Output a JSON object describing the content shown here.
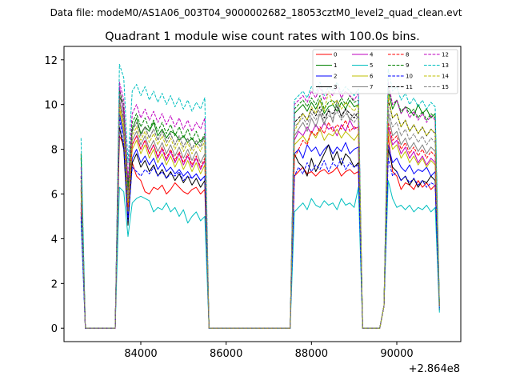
{
  "chart_data": {
    "type": "line",
    "suptitle": "Data file: modeM0/AS1A06_003T04_9000002682_18053cztM0_level2_quad_clean.evt",
    "title": "Quadrant 1 module wise count rates with 100.0s bins.",
    "xlabel": "",
    "ylabel": "",
    "x_offset_label": "+2.864e8",
    "xlim": [
      82200,
      91500
    ],
    "ylim": [
      -0.6,
      12.6
    ],
    "x_ticks": [
      84000,
      86000,
      88000,
      90000
    ],
    "x_tick_labels": [
      "84000",
      "86000",
      "88000",
      "90000"
    ],
    "y_ticks": [
      0,
      2,
      4,
      6,
      8,
      10,
      12
    ],
    "y_tick_labels": [
      "0",
      "2",
      "4",
      "6",
      "8",
      "10",
      "12"
    ],
    "legend_position": "top-right",
    "segments": [
      {
        "x0": 83500,
        "dx": 100,
        "n": 21
      },
      {
        "x0": 87600,
        "dx": 100,
        "n": 16
      },
      {
        "x0": 89800,
        "dx": 100,
        "n": 12
      }
    ],
    "series": [
      {
        "name": "0",
        "color": "#ff0000",
        "dash": "solid",
        "lead": 6.2,
        "peak": 8.6,
        "tail": 1.0,
        "segments": [
          [
            8.6,
            8.2,
            6.2,
            7.4,
            6.8,
            6.6,
            6.1,
            6.0,
            6.3,
            6.2,
            6.4,
            6.0,
            6.2,
            6.5,
            6.3,
            6.1,
            6.0,
            6.2,
            6.3,
            6.0,
            6.2
          ],
          [
            6.8,
            7.0,
            7.2,
            6.9,
            7.0,
            6.8,
            7.0,
            7.1,
            6.9,
            7.0,
            7.2,
            6.8,
            7.0,
            7.1,
            6.9,
            7.0
          ],
          [
            8.6,
            7.0,
            6.8,
            6.2,
            6.5,
            6.4,
            6.2,
            6.6,
            6.3,
            6.5,
            6.2,
            6.4
          ]
        ]
      },
      {
        "name": "1",
        "color": "#008000",
        "dash": "solid",
        "lead": 7.8,
        "peak": 10.4,
        "tail": 1.0,
        "segments": [
          [
            10.4,
            9.8,
            6.4,
            8.9,
            9.4,
            8.7,
            9.0,
            8.8,
            9.2,
            8.6,
            8.9,
            8.5,
            8.8,
            8.7,
            8.4,
            8.6,
            8.3,
            8.5,
            8.2,
            8.4,
            8.5
          ],
          [
            9.6,
            9.8,
            10.0,
            9.7,
            10.1,
            9.8,
            10.2,
            9.6,
            9.9,
            10.0,
            9.7,
            10.1,
            9.8,
            10.2,
            9.9,
            10.0
          ],
          [
            10.6,
            9.8,
            10.2,
            9.6,
            9.9,
            9.8,
            9.5,
            10.0,
            9.6,
            9.8,
            9.4,
            9.6
          ]
        ]
      },
      {
        "name": "2",
        "color": "#0000ff",
        "dash": "solid",
        "lead": 5.6,
        "peak": 9.6,
        "tail": 1.0,
        "segments": [
          [
            9.6,
            8.6,
            5.0,
            7.6,
            8.0,
            7.4,
            7.7,
            7.3,
            7.6,
            7.1,
            7.4,
            7.0,
            7.2,
            6.9,
            7.1,
            6.8,
            7.0,
            6.7,
            6.9,
            6.6,
            6.8
          ],
          [
            7.8,
            8.0,
            7.6,
            8.2,
            7.9,
            8.1,
            7.7,
            8.0,
            8.2,
            7.8,
            8.1,
            7.9,
            8.3,
            7.8,
            8.0,
            8.1
          ],
          [
            8.2,
            7.4,
            7.6,
            7.2,
            7.0,
            7.3,
            6.9,
            7.1,
            7.0,
            7.2,
            6.8,
            7.0
          ]
        ]
      },
      {
        "name": "3",
        "color": "#000000",
        "dash": "solid",
        "lead": 5.2,
        "peak": 9.0,
        "tail": 0.8,
        "segments": [
          [
            9.0,
            8.0,
            4.6,
            7.4,
            7.8,
            7.2,
            7.5,
            7.0,
            7.3,
            6.8,
            7.1,
            6.7,
            7.0,
            6.6,
            6.9,
            6.5,
            6.8,
            6.4,
            6.7,
            6.3,
            6.6
          ],
          [
            7.8,
            7.4,
            7.2,
            6.8,
            7.6,
            7.0,
            7.4,
            7.8,
            8.2,
            7.5,
            7.9,
            7.3,
            7.8,
            7.6,
            7.2,
            7.4
          ],
          [
            8.0,
            7.2,
            7.0,
            6.6,
            6.8,
            6.4,
            6.7,
            6.3,
            6.6,
            6.5,
            6.8,
            6.6
          ]
        ]
      },
      {
        "name": "4",
        "color": "#bf00bf",
        "dash": "solid",
        "lead": 5.4,
        "peak": 10.8,
        "tail": 1.0,
        "segments": [
          [
            10.8,
            9.6,
            5.8,
            8.2,
            8.6,
            8.0,
            8.4,
            7.8,
            8.2,
            7.6,
            8.0,
            7.5,
            7.9,
            7.4,
            7.8,
            7.3,
            7.7,
            7.2,
            7.6,
            7.1,
            7.5
          ],
          [
            8.4,
            8.8,
            8.6,
            9.0,
            8.7,
            9.1,
            8.8,
            9.2,
            8.9,
            9.0,
            8.6,
            9.1,
            8.8,
            9.3,
            8.9,
            9.0
          ],
          [
            9.0,
            8.2,
            8.4,
            7.8,
            8.1,
            7.6,
            7.9,
            7.4,
            7.7,
            7.3,
            7.6,
            7.4
          ]
        ]
      },
      {
        "name": "5",
        "color": "#00bfbf",
        "dash": "solid",
        "lead": 4.8,
        "peak": 6.3,
        "tail": 0.7,
        "segments": [
          [
            6.3,
            6.1,
            4.1,
            5.6,
            5.8,
            5.9,
            5.8,
            5.7,
            5.2,
            5.4,
            5.3,
            5.6,
            5.2,
            5.4,
            5.0,
            5.3,
            4.7,
            5.0,
            5.2,
            4.8,
            5.0
          ],
          [
            5.2,
            5.4,
            5.6,
            5.3,
            5.8,
            5.5,
            5.4,
            5.7,
            5.5,
            5.6,
            5.3,
            5.8,
            5.5,
            5.6,
            5.4,
            6.3
          ],
          [
            6.6,
            5.8,
            5.4,
            5.5,
            5.3,
            5.5,
            5.2,
            5.4,
            5.3,
            5.5,
            5.2,
            5.4
          ]
        ]
      },
      {
        "name": "6",
        "color": "#bfbf00",
        "dash": "solid",
        "lead": 6.0,
        "peak": 9.8,
        "tail": 1.0,
        "segments": [
          [
            9.8,
            8.8,
            5.2,
            8.0,
            8.4,
            7.8,
            8.2,
            7.6,
            8.0,
            7.4,
            7.8,
            7.3,
            7.7,
            7.2,
            7.6,
            7.1,
            7.5,
            7.0,
            7.4,
            6.9,
            7.3
          ],
          [
            8.2,
            8.4,
            8.6,
            8.3,
            8.8,
            8.5,
            8.9,
            8.4,
            8.7,
            8.6,
            8.9,
            8.5,
            8.8,
            8.6,
            8.4,
            8.7
          ],
          [
            8.8,
            8.0,
            8.2,
            7.6,
            7.9,
            7.4,
            7.7,
            7.3,
            7.6,
            7.2,
            7.5,
            7.3
          ]
        ]
      },
      {
        "name": "7",
        "color": "#808080",
        "dash": "solid",
        "lead": 6.4,
        "peak": 10.2,
        "tail": 1.0,
        "segments": [
          [
            10.2,
            9.2,
            5.6,
            8.4,
            8.8,
            8.2,
            8.6,
            8.0,
            8.4,
            7.9,
            8.3,
            7.8,
            8.2,
            7.7,
            8.1,
            7.6,
            8.0,
            7.5,
            7.9,
            7.4,
            7.8
          ],
          [
            8.6,
            8.9,
            9.2,
            8.8,
            9.4,
            9.0,
            9.6,
            9.1,
            9.8,
            9.2,
            10.2,
            9.4,
            9.8,
            9.3,
            9.6,
            9.4
          ],
          [
            9.6,
            8.6,
            8.8,
            8.2,
            8.5,
            8.0,
            8.3,
            7.9,
            8.2,
            7.8,
            8.1,
            7.9
          ]
        ]
      },
      {
        "name": "8",
        "color": "#ff0000",
        "dash": "dashed",
        "lead": 6.6,
        "peak": 10.0,
        "tail": 1.0,
        "segments": [
          [
            10.0,
            9.0,
            5.4,
            8.2,
            8.6,
            8.0,
            8.4,
            7.8,
            8.2,
            7.7,
            8.1,
            7.6,
            8.0,
            7.5,
            7.9,
            7.4,
            7.8,
            7.3,
            7.7,
            7.2,
            7.6
          ],
          [
            7.6,
            8.0,
            8.4,
            8.2,
            8.8,
            8.6,
            9.0,
            8.7,
            9.2,
            8.8,
            9.1,
            8.9,
            9.3,
            8.8,
            9.0,
            8.9
          ],
          [
            9.2,
            8.4,
            8.6,
            8.0,
            8.3,
            7.8,
            8.1,
            7.7,
            8.0,
            7.6,
            7.9,
            7.7
          ]
        ]
      },
      {
        "name": "9",
        "color": "#008000",
        "dash": "dashed",
        "lead": 7.6,
        "peak": 10.6,
        "tail": 1.0,
        "segments": [
          [
            10.6,
            10.0,
            6.2,
            9.2,
            9.6,
            9.0,
            9.4,
            8.9,
            9.3,
            8.8,
            9.2,
            8.7,
            9.1,
            8.6,
            9.0,
            8.5,
            8.9,
            8.4,
            8.8,
            8.3,
            8.7
          ],
          [
            9.8,
            10.0,
            10.2,
            9.9,
            10.3,
            10.0,
            10.4,
            9.8,
            10.1,
            10.2,
            9.9,
            10.3,
            10.0,
            10.4,
            10.1,
            10.2
          ],
          [
            10.8,
            10.0,
            10.2,
            9.7,
            9.9,
            9.6,
            9.8,
            9.4,
            9.7,
            9.3,
            9.6,
            9.4
          ]
        ]
      },
      {
        "name": "10",
        "color": "#0000ff",
        "dash": "dashed",
        "lead": 5.0,
        "peak": 9.4,
        "tail": 0.9,
        "segments": [
          [
            9.4,
            8.2,
            4.8,
            7.2,
            7.0,
            6.8,
            7.1,
            6.9,
            7.2,
            6.8,
            7.0,
            6.7,
            6.9,
            6.8,
            7.0,
            6.6,
            6.8,
            6.7,
            6.9,
            6.6,
            6.8
          ],
          [
            6.8,
            7.2,
            6.9,
            7.4,
            7.0,
            7.3,
            7.1,
            7.5,
            7.0,
            7.4,
            7.2,
            7.6,
            7.1,
            7.4,
            7.2,
            7.3
          ],
          [
            7.6,
            6.8,
            7.0,
            6.6,
            6.8,
            6.5,
            6.7,
            6.4,
            6.6,
            6.3,
            6.5,
            6.4
          ]
        ]
      },
      {
        "name": "11",
        "color": "#000000",
        "dash": "dashed",
        "lead": 6.8,
        "peak": 10.2,
        "tail": 1.0,
        "segments": [
          [
            10.2,
            9.4,
            5.8,
            8.8,
            9.2,
            8.6,
            9.0,
            8.5,
            8.9,
            8.4,
            8.8,
            8.3,
            8.7,
            8.2,
            8.6,
            8.1,
            8.5,
            8.0,
            8.4,
            8.1,
            8.6
          ],
          [
            9.2,
            9.4,
            9.6,
            9.3,
            9.8,
            9.5,
            9.9,
            9.4,
            9.7,
            9.6,
            9.9,
            9.5,
            9.8,
            9.6,
            9.4,
            9.7
          ],
          [
            10.2,
            9.4,
            9.6,
            9.0,
            9.3,
            8.8,
            9.1,
            8.7,
            9.0,
            8.6,
            8.9,
            8.7
          ]
        ]
      },
      {
        "name": "12",
        "color": "#bf00bf",
        "dash": "dashed",
        "lead": 7.2,
        "peak": 11.0,
        "tail": 1.0,
        "segments": [
          [
            11.0,
            10.2,
            6.6,
            9.6,
            10.0,
            9.4,
            9.8,
            9.3,
            9.7,
            9.2,
            9.6,
            9.1,
            9.5,
            9.0,
            9.4,
            8.9,
            9.3,
            8.8,
            9.2,
            8.9,
            9.4
          ],
          [
            10.0,
            10.2,
            10.4,
            10.1,
            10.6,
            10.3,
            10.8,
            10.2,
            10.6,
            10.4,
            10.8,
            10.3,
            10.6,
            10.4,
            10.2,
            10.5
          ],
          [
            11.0,
            10.0,
            10.2,
            9.6,
            9.9,
            9.4,
            9.7,
            9.3,
            9.6,
            9.2,
            9.5,
            9.3
          ]
        ]
      },
      {
        "name": "13",
        "color": "#00bfbf",
        "dash": "dashed",
        "lead": 8.5,
        "peak": 11.8,
        "tail": 1.1,
        "segments": [
          [
            11.8,
            11.2,
            7.4,
            10.6,
            10.9,
            10.4,
            10.8,
            10.2,
            10.6,
            10.1,
            10.5,
            10.0,
            10.4,
            9.9,
            10.3,
            9.8,
            10.2,
            9.7,
            10.1,
            9.8,
            10.3
          ],
          [
            10.2,
            10.4,
            10.6,
            10.3,
            10.8,
            10.5,
            11.0,
            10.4,
            10.8,
            10.6,
            11.0,
            10.5,
            10.8,
            10.6,
            10.4,
            10.7
          ],
          [
            11.6,
            10.6,
            10.8,
            10.2,
            10.5,
            10.0,
            10.3,
            9.9,
            10.2,
            9.8,
            10.1,
            9.9
          ]
        ]
      },
      {
        "name": "14",
        "color": "#bfbf00",
        "dash": "dashed",
        "lead": 6.2,
        "peak": 10.0,
        "tail": 1.0,
        "segments": [
          [
            10.0,
            9.0,
            5.6,
            8.6,
            9.0,
            8.4,
            8.8,
            8.3,
            8.7,
            8.2,
            8.6,
            8.1,
            8.5,
            8.0,
            8.4,
            7.9,
            8.3,
            7.8,
            8.2,
            7.9,
            8.4
          ],
          [
            8.8,
            9.2,
            9.6,
            9.3,
            9.9,
            9.6,
            10.2,
            9.7,
            10.6,
            10.0,
            10.2,
            9.8,
            10.1,
            9.9,
            9.7,
            10.0
          ],
          [
            10.4,
            9.4,
            9.6,
            9.0,
            9.3,
            8.8,
            9.1,
            8.7,
            9.0,
            8.6,
            8.9,
            8.7
          ]
        ]
      },
      {
        "name": "15",
        "color": "#808080",
        "dash": "dashed",
        "lead": 6.6,
        "peak": 10.2,
        "tail": 1.0,
        "segments": [
          [
            10.2,
            9.4,
            5.8,
            8.8,
            9.2,
            8.6,
            9.0,
            8.5,
            8.9,
            8.4,
            8.8,
            8.3,
            8.7,
            8.2,
            8.6,
            8.1,
            8.5,
            8.0,
            8.4,
            8.1,
            8.6
          ],
          [
            9.0,
            9.2,
            9.4,
            9.1,
            9.6,
            9.3,
            9.7,
            9.2,
            9.5,
            9.4,
            9.7,
            9.3,
            9.6,
            9.4,
            9.2,
            9.5
          ],
          [
            9.8,
            9.0,
            9.2,
            8.6,
            8.9,
            8.4,
            8.7,
            8.3,
            8.6,
            8.2,
            8.5,
            8.3
          ]
        ]
      }
    ]
  }
}
